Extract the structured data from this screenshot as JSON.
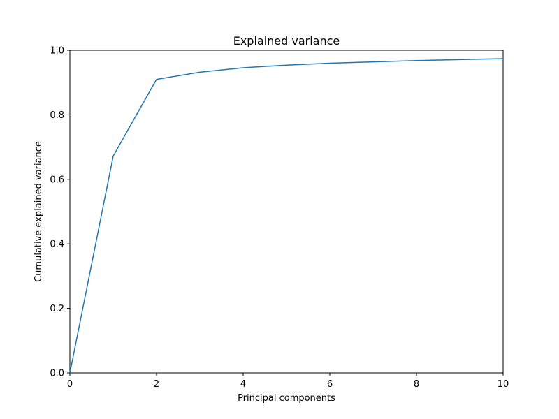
{
  "chart_data": {
    "type": "line",
    "title": "Explained variance",
    "xlabel": "Principal components",
    "ylabel": "Cumulative explained variance",
    "xlim": [
      0,
      10
    ],
    "ylim": [
      0,
      1
    ],
    "xticks": [
      0,
      2,
      4,
      6,
      8,
      10
    ],
    "yticks": [
      0.0,
      0.2,
      0.4,
      0.6,
      0.8,
      1.0
    ],
    "xtick_labels": [
      "0",
      "2",
      "4",
      "6",
      "8",
      "10"
    ],
    "ytick_labels": [
      "0.0",
      "0.2",
      "0.4",
      "0.6",
      "0.8",
      "1.0"
    ],
    "grid": false,
    "series": [
      {
        "x": [
          0,
          1,
          2,
          3,
          4,
          5,
          6,
          7,
          8,
          9,
          10
        ],
        "y": [
          0.0,
          0.672,
          0.91,
          0.932,
          0.946,
          0.954,
          0.96,
          0.964,
          0.968,
          0.971,
          0.974
        ],
        "color": "#1f77b4"
      }
    ]
  }
}
